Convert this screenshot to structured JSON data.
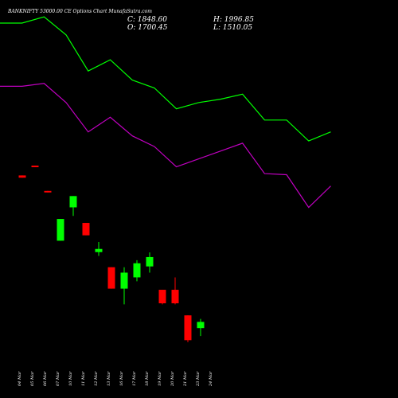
{
  "chart_data": {
    "type": "candlestick",
    "title": "BANKNIFTY 53000.00 CE Options Chart MunafaSutra.com",
    "ohlc_summary": {
      "close": "C: 1848.60",
      "high": "H: 1996.85",
      "open": "O: 1700.45",
      "low": "L: 1510.05"
    },
    "colors": {
      "background": "#000000",
      "up": "#00ff00",
      "down": "#ff0000",
      "upper_line": "#00ff00",
      "lower_line": "#c000c0",
      "text": "#ffffff"
    },
    "price_range": [
      50,
      3580
    ],
    "categories": [
      "04 Mar",
      "05 Mar",
      "06 Mar",
      "07 Mar",
      "10 Mar",
      "11 Mar",
      "12 Mar",
      "13 Mar",
      "16 Mar",
      "17 Mar",
      "18 Mar",
      "19 Mar",
      "20 Mar",
      "21 Mar",
      "23 Mar",
      "24 Mar"
    ],
    "candles": [
      {
        "date": "04 Mar",
        "open": null,
        "high": null,
        "low": null,
        "close": null
      },
      {
        "date": "05 Mar",
        "open": 2024,
        "high": 2024,
        "low": 2004,
        "close": 2004
      },
      {
        "date": "06 Mar",
        "open": 2111,
        "high": 2111,
        "low": 2097,
        "close": 2097
      },
      {
        "date": "07 Mar",
        "open": 1887,
        "high": 1887,
        "low": 1873,
        "close": 1873
      },
      {
        "date": "10 Mar",
        "open": 1445,
        "high": 1638,
        "low": 1445,
        "close": 1638
      },
      {
        "date": "11 Mar",
        "open": 1741,
        "high": 1841,
        "low": 1665,
        "close": 1841
      },
      {
        "date": "12 Mar",
        "open": 1603,
        "high": 1603,
        "low": 1493,
        "close": 1493
      },
      {
        "date": "13 Mar",
        "open": 1344,
        "high": 1434,
        "low": 1310,
        "close": 1372
      },
      {
        "date": "16 Mar",
        "open": 1210,
        "high": 1210,
        "low": 1020,
        "close": 1020
      },
      {
        "date": "17 Mar",
        "open": 1020,
        "high": 1210,
        "low": 880,
        "close": 1162
      },
      {
        "date": "18 Mar",
        "open": 1120,
        "high": 1272,
        "low": 1085,
        "close": 1245
      },
      {
        "date": "19 Mar",
        "open": 1217,
        "high": 1341,
        "low": 1162,
        "close": 1300
      },
      {
        "date": "20 Mar",
        "open": 1010,
        "high": 1010,
        "low": 880,
        "close": 890
      },
      {
        "date": "21 Mar",
        "open": 1010,
        "high": 1120,
        "low": 880,
        "close": 890
      },
      {
        "date": "23 Mar",
        "open": 783,
        "high": 783,
        "low": 545,
        "close": 563
      },
      {
        "date": "24 Mar",
        "open": 670,
        "high": 752,
        "low": 600,
        "close": 725
      }
    ],
    "upper_line": {
      "x": [
        "04 Mar",
        "05 Mar",
        "06 Mar",
        "07 Mar",
        "10 Mar",
        "11 Mar",
        "12 Mar",
        "13 Mar",
        "16 Mar",
        "17 Mar",
        "18 Mar",
        "19 Mar",
        "20 Mar",
        "21 Mar",
        "23 Mar",
        "24 Mar"
      ],
      "values": [
        3375,
        3375,
        3430,
        3270,
        2950,
        3050,
        2870,
        2800,
        2615,
        2670,
        2700,
        2745,
        2515,
        2515,
        2330,
        2410
      ]
    },
    "lower_line": {
      "x": [
        "04 Mar",
        "05 Mar",
        "06 Mar",
        "07 Mar",
        "10 Mar",
        "11 Mar",
        "12 Mar",
        "13 Mar",
        "16 Mar",
        "17 Mar",
        "18 Mar",
        "19 Mar",
        "20 Mar",
        "21 Mar",
        "23 Mar",
        "24 Mar"
      ],
      "values": [
        2815,
        2815,
        2840,
        2670,
        2410,
        2540,
        2375,
        2280,
        2100,
        2170,
        2240,
        2310,
        2040,
        2030,
        1740,
        1930
      ]
    }
  }
}
